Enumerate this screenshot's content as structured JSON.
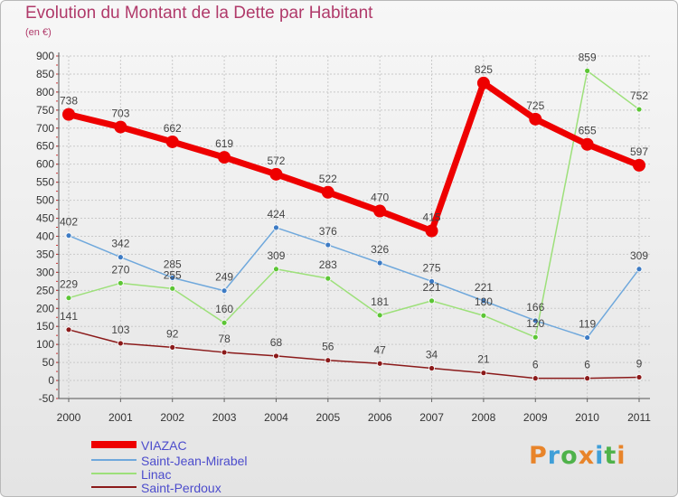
{
  "title": "Evolution du Montant de la Dette par Habitant",
  "subtitle": "(en €)",
  "brand": "Proxiti",
  "colors": {
    "title": "#b03a6a",
    "legend_text": "#4c4ccc",
    "brand_letters": [
      "#e8842a",
      "#3f9fd8",
      "#4fb24a",
      "#e8842a",
      "#3f9fd8",
      "#4fb24a",
      "#e8842a"
    ]
  },
  "chart_data": {
    "type": "line",
    "title": "Evolution du Montant de la Dette par Habitant",
    "subtitle": "(en €)",
    "xlabel": "",
    "ylabel": "",
    "x": [
      "2000",
      "2001",
      "2002",
      "2003",
      "2004",
      "2005",
      "2006",
      "2007",
      "2008",
      "2009",
      "2010",
      "2011"
    ],
    "ylim": [
      -50,
      900
    ],
    "yticks": [
      -50,
      0,
      50,
      100,
      150,
      200,
      250,
      300,
      350,
      400,
      450,
      500,
      550,
      600,
      650,
      700,
      750,
      800,
      850,
      900
    ],
    "grid": true,
    "legend_position": "bottom-left",
    "series": [
      {
        "name": "Saint-Perdoux",
        "color": "#8b1a1a",
        "point_color": "#8b1a1a",
        "values": [
          141,
          103,
          92,
          78,
          68,
          56,
          47,
          34,
          21,
          6,
          6,
          9
        ]
      },
      {
        "name": "Linac",
        "color": "#9de07a",
        "point_color": "#5cc535",
        "values": [
          229,
          270,
          255,
          160,
          309,
          283,
          181,
          221,
          180,
          120,
          859,
          752
        ]
      },
      {
        "name": "Saint-Jean-Mirabel",
        "color": "#6fa8dc",
        "point_color": "#3d7bc4",
        "values": [
          402,
          342,
          285,
          249,
          424,
          376,
          326,
          275,
          221,
          166,
          119,
          309
        ]
      },
      {
        "name": "VIAZAC",
        "color": "#ee0000",
        "point_color": "#ee0000",
        "values": [
          738,
          703,
          662,
          619,
          572,
          522,
          470,
          415,
          825,
          725,
          655,
          597
        ]
      }
    ],
    "legend": [
      "VIAZAC",
      "Saint-Jean-Mirabel",
      "Linac",
      "Saint-Perdoux"
    ]
  }
}
